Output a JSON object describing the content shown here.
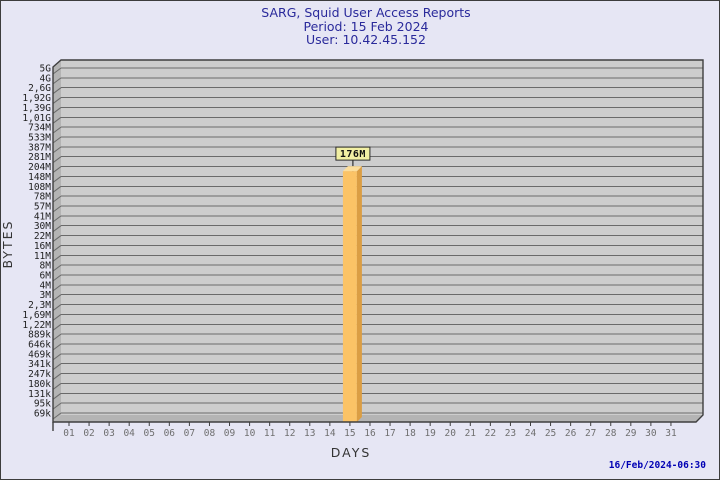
{
  "header": {
    "title": "SARG, Squid User Access Reports",
    "period": "Period: 15 Feb 2024",
    "user": "User: 10.42.45.152"
  },
  "footer": {
    "timestamp": "16/Feb/2024-06:30"
  },
  "chart_data": {
    "type": "bar",
    "scale": "log",
    "title": "SARG, Squid User Access Reports",
    "xlabel": "DAYS",
    "ylabel": "BYTES",
    "x_tick_labels": [
      "01",
      "02",
      "03",
      "04",
      "05",
      "06",
      "07",
      "08",
      "09",
      "10",
      "11",
      "12",
      "13",
      "14",
      "15",
      "16",
      "17",
      "18",
      "19",
      "20",
      "21",
      "22",
      "23",
      "24",
      "25",
      "26",
      "27",
      "28",
      "29",
      "30",
      "31"
    ],
    "y_tick_labels": [
      "5G",
      "4G",
      "2,6G",
      "1,92G",
      "1,39G",
      "1,01G",
      "734M",
      "533M",
      "387M",
      "281M",
      "204M",
      "148M",
      "108M",
      "78M",
      "57M",
      "41M",
      "30M",
      "22M",
      "16M",
      "11M",
      "8M",
      "6M",
      "4M",
      "3M",
      "2,3M",
      "1,69M",
      "1,22M",
      "889k",
      "646k",
      "469k",
      "341k",
      "247k",
      "180k",
      "131k",
      "95k",
      "69k"
    ],
    "bars": [
      {
        "day": "15",
        "label": "176M",
        "value_bytes": 176000000
      }
    ],
    "legend": null,
    "grid": true
  },
  "colors": {
    "page_bg": "#E6E6F4",
    "title_text": "#2A2A9B",
    "timestamp_text": "#0000B4",
    "plot_bg": "#CDCDCD",
    "wall": "#B4B4B4",
    "grid_line": "#6A6A6A",
    "border_line": "#3F3F3F",
    "bar_face": "#FBC366",
    "bar_side": "#DB9E44",
    "bar_top": "#FCDE9C",
    "value_box_bg": "#F1EFA3",
    "value_box_border": "#2A2A2A"
  }
}
